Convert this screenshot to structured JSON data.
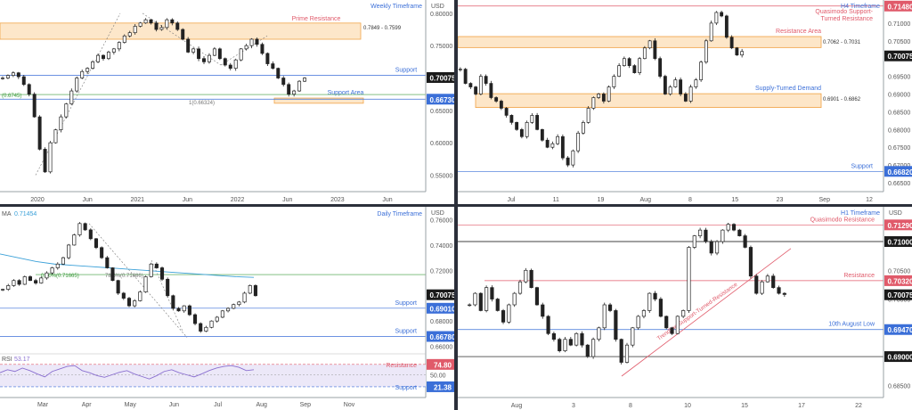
{
  "charts": {
    "weekly": {
      "type": "candlestick",
      "title": "Weekly Timeframe",
      "currency_label": "USD",
      "ylim": [
        0.53,
        0.815
      ],
      "y_ticks": [
        "0.80000",
        "0.75000",
        "0.70000",
        "0.65000",
        "0.60000",
        "0.55000"
      ],
      "y_tick_values": [
        0.8,
        0.75,
        0.7,
        0.65,
        0.6,
        0.55
      ],
      "x_ticks": [
        "2020",
        "Jun",
        "2021",
        "Jun",
        "2022",
        "Jun",
        "2023",
        "Jun"
      ],
      "price_label": "0.70075",
      "support_price_label": "0.66730",
      "zones": [
        {
          "label": "Prime Resistance",
          "range_label": "0.7849 - 0.7599",
          "low": 0.7599,
          "high": 0.7849,
          "color": "#f5a623"
        },
        {
          "label": "Support Area",
          "range_label": "",
          "low": 0.661,
          "high": 0.669,
          "color": "#f5a623"
        }
      ],
      "lines": [
        {
          "label": "Support",
          "value": 0.704,
          "color": "#3b6fd8"
        },
        {
          "label": "",
          "value": 0.6673,
          "color": "#3b6fd8"
        }
      ],
      "fib_labels": [
        "(0.6745)",
        "1(0.66324)"
      ],
      "closes": [
        0.7,
        0.704,
        0.708,
        0.702,
        0.69,
        0.675,
        0.64,
        0.59,
        0.555,
        0.6,
        0.62,
        0.64,
        0.66,
        0.68,
        0.7,
        0.71,
        0.715,
        0.725,
        0.735,
        0.73,
        0.74,
        0.745,
        0.755,
        0.765,
        0.77,
        0.78,
        0.785,
        0.79,
        0.785,
        0.775,
        0.778,
        0.79,
        0.785,
        0.775,
        0.76,
        0.74,
        0.745,
        0.73,
        0.725,
        0.735,
        0.745,
        0.73,
        0.72,
        0.715,
        0.728,
        0.745,
        0.75,
        0.76,
        0.752,
        0.738,
        0.722,
        0.715,
        0.7,
        0.69,
        0.675,
        0.68,
        0.695,
        0.7
      ]
    },
    "h4": {
      "type": "candlestick",
      "title": "H4 Timeframe",
      "currency_label": "USD",
      "ylim": [
        0.6635,
        0.7155
      ],
      "y_ticks": [
        "0.71000",
        "0.70500",
        "0.70000",
        "0.69500",
        "0.69000",
        "0.68500",
        "0.68000",
        "0.67500",
        "0.67000",
        "0.66500"
      ],
      "y_tick_values": [
        0.71,
        0.705,
        0.7,
        0.695,
        0.69,
        0.685,
        0.68,
        0.675,
        0.67,
        0.665
      ],
      "x_ticks": [
        "Jul",
        "11",
        "19",
        "Aug",
        "8",
        "15",
        "23",
        "Sep",
        "12"
      ],
      "price_label": "0.70075",
      "top_price_label": "0.71480",
      "support_price_label": "0.66820",
      "zones": [
        {
          "label": "Resistance Area",
          "range_label": "0.7062 - 0.7031",
          "low": 0.7031,
          "high": 0.7062,
          "color": "#f5a623"
        },
        {
          "label": "Supply-Turned Demand",
          "range_label": "0.6901 - 0.6862",
          "low": 0.6862,
          "high": 0.6901,
          "color": "#f5a623"
        }
      ],
      "lines": [
        {
          "label": "Quasimodo Support-Turned Resistance",
          "value": 0.7148,
          "color": "#e05a6a"
        },
        {
          "label": "Support",
          "value": 0.6682,
          "color": "#3b6fd8"
        }
      ],
      "closes": [
        0.697,
        0.693,
        0.692,
        0.69,
        0.695,
        0.693,
        0.689,
        0.688,
        0.686,
        0.684,
        0.682,
        0.68,
        0.678,
        0.682,
        0.684,
        0.68,
        0.677,
        0.675,
        0.676,
        0.678,
        0.672,
        0.67,
        0.674,
        0.679,
        0.682,
        0.686,
        0.689,
        0.69,
        0.688,
        0.692,
        0.695,
        0.698,
        0.7,
        0.698,
        0.696,
        0.7,
        0.703,
        0.705,
        0.7,
        0.695,
        0.69,
        0.692,
        0.694,
        0.69,
        0.688,
        0.692,
        0.694,
        0.699,
        0.705,
        0.71,
        0.713,
        0.712,
        0.706,
        0.703,
        0.701,
        0.702
      ]
    },
    "daily": {
      "type": "candlestick",
      "title": "Daily Timeframe",
      "currency_label": "USD",
      "ma_label": "MA",
      "ma_value": "0.71454",
      "ylim": [
        0.659,
        0.766
      ],
      "y_ticks": [
        "0.76000",
        "0.74000",
        "0.72000",
        "0.70000",
        "0.68000",
        "0.66000"
      ],
      "y_tick_values": [
        0.76,
        0.74,
        0.72,
        0.7,
        0.68,
        0.66
      ],
      "x_ticks": [
        "Mar",
        "Apr",
        "May",
        "Jun",
        "Jul",
        "Aug",
        "Sep",
        "Nov"
      ],
      "price_label": "0.70075",
      "support1_label": "0.69010",
      "support2_label": "0.66780",
      "lines": [
        {
          "label": "Support",
          "value": 0.6901,
          "color": "#3b6fd8"
        },
        {
          "label": "Support",
          "value": 0.6678,
          "color": "#3b6fd8"
        }
      ],
      "fib_labels": [
        "0.00%(0.71665)",
        "78.6%(0.71686)"
      ],
      "ma": [
        0.733,
        0.73,
        0.727,
        0.725,
        0.724,
        0.723,
        0.722,
        0.721,
        0.72,
        0.719,
        0.718,
        0.717,
        0.716,
        0.715,
        0.7145
      ],
      "closes": [
        0.705,
        0.708,
        0.712,
        0.709,
        0.715,
        0.712,
        0.71,
        0.714,
        0.718,
        0.722,
        0.725,
        0.73,
        0.74,
        0.748,
        0.757,
        0.752,
        0.745,
        0.738,
        0.73,
        0.722,
        0.712,
        0.702,
        0.698,
        0.692,
        0.696,
        0.703,
        0.715,
        0.725,
        0.722,
        0.713,
        0.7,
        0.69,
        0.688,
        0.692,
        0.685,
        0.678,
        0.672,
        0.675,
        0.68,
        0.683,
        0.688,
        0.69,
        0.693,
        0.695,
        0.702,
        0.708,
        0.7
      ],
      "rsi_label": "RSI",
      "rsi_value": "53.17",
      "rsi_ticks": [
        "50.00"
      ],
      "rsi_high_label": "74.80",
      "rsi_low_label": "21.38",
      "rsi_resistance": "Resistance",
      "rsi_support": "Support",
      "rsi": [
        55,
        62,
        58,
        66,
        60,
        52,
        45,
        58,
        64,
        70,
        72,
        60,
        55,
        48,
        44,
        50,
        56,
        60,
        52,
        46,
        40,
        48,
        58,
        62,
        55,
        50,
        45,
        52,
        60,
        66,
        70,
        72,
        68,
        60,
        62
      ]
    },
    "h1": {
      "type": "candlestick",
      "title": "H1 Timeframe",
      "currency_label": "USD",
      "ylim": [
        0.6835,
        0.7145
      ],
      "y_ticks": [
        "0.71000",
        "0.70500",
        "0.70000",
        "0.69500",
        "0.69000",
        "0.68500"
      ],
      "y_tick_values": [
        0.71,
        0.705,
        0.7,
        0.695,
        0.69,
        0.685
      ],
      "x_ticks": [
        "Aug",
        "3",
        "8",
        "10",
        "15",
        "17",
        "22"
      ],
      "price_label": "0.70075",
      "lines": [
        {
          "label": "Quasimodo Resistance",
          "value": 0.7129,
          "color": "#e05a6a",
          "price_label": "0.71290"
        },
        {
          "label": "",
          "value": 0.71,
          "color": "#000000",
          "price_label": "0.71000"
        },
        {
          "label": "Resistance",
          "value": 0.7032,
          "color": "#e05a6a",
          "price_label": "0.70320"
        },
        {
          "label": "10th August Low",
          "value": 0.6947,
          "color": "#3b6fd8",
          "price_label": "0.69470"
        },
        {
          "label": "",
          "value": 0.69,
          "color": "#000000",
          "price_label": "0.69000"
        }
      ],
      "trendline_label": "Trendline Support-Turned-Resistance",
      "closes": [
        0.699,
        0.701,
        0.698,
        0.702,
        0.7,
        0.698,
        0.696,
        0.699,
        0.701,
        0.703,
        0.705,
        0.702,
        0.699,
        0.697,
        0.694,
        0.693,
        0.691,
        0.693,
        0.692,
        0.694,
        0.692,
        0.69,
        0.693,
        0.695,
        0.699,
        0.698,
        0.693,
        0.689,
        0.692,
        0.695,
        0.697,
        0.698,
        0.701,
        0.7,
        0.697,
        0.695,
        0.694,
        0.697,
        0.698,
        0.709,
        0.711,
        0.712,
        0.71,
        0.708,
        0.71,
        0.712,
        0.713,
        0.712,
        0.711,
        0.709,
        0.704,
        0.701,
        0.703,
        0.704,
        0.702,
        0.701,
        0.7008
      ]
    }
  }
}
